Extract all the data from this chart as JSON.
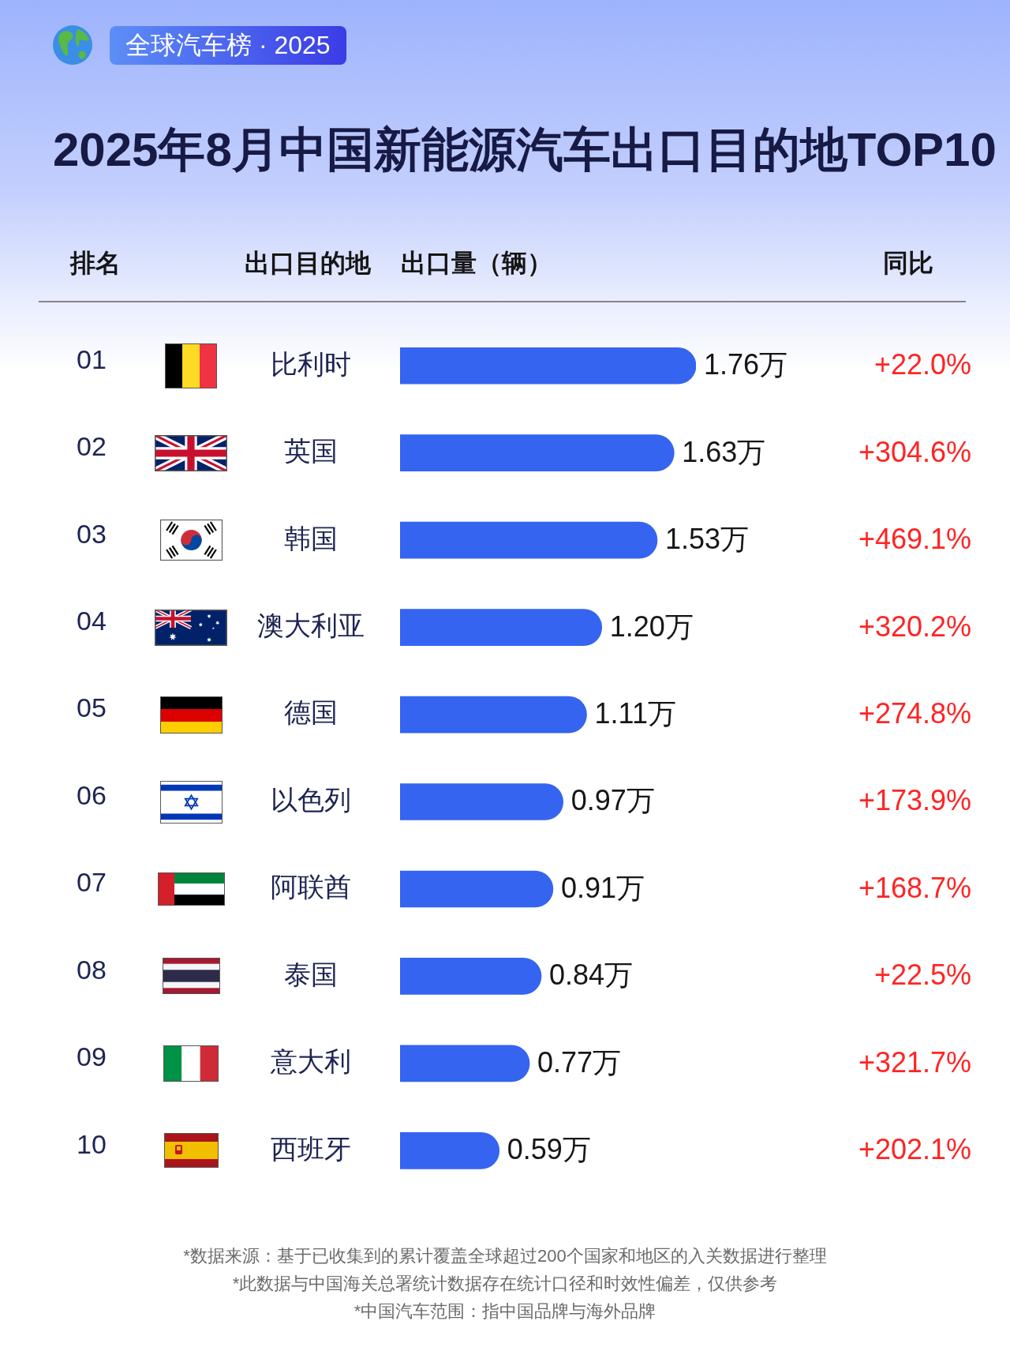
{
  "chart_data": {
    "type": "bar",
    "orientation": "horizontal",
    "title": "2025年8月中国新能源汽车出口目的地TOP10",
    "subtitle": "全球汽车榜 · 2025",
    "xlabel": "出口量（辆）",
    "ylabel": "出口目的地",
    "categories": [
      "比利时",
      "英国",
      "韩国",
      "澳大利亚",
      "德国",
      "以色列",
      "阿联酋",
      "泰国",
      "意大利",
      "西班牙"
    ],
    "values": [
      1.76,
      1.63,
      1.53,
      1.2,
      1.11,
      0.97,
      0.91,
      0.84,
      0.77,
      0.59
    ],
    "value_labels": [
      "1.76万",
      "1.63万",
      "1.53万",
      "1.20万",
      "1.11万",
      "0.97万",
      "0.91万",
      "0.84万",
      "0.77万",
      "0.59万"
    ],
    "color": "#3464f0",
    "tick_labels": "y",
    "annotations": [
      "排名",
      "01",
      "02",
      "03",
      "04",
      "05",
      "06",
      "07",
      "08",
      "09",
      "10",
      "同比",
      "+22.0%",
      "+304.6%",
      "+469.1%",
      "+320.2%",
      "+274.8%",
      "+173.9%",
      "+168.7%",
      "+22.5%",
      "+321.7%",
      "+202.1%",
      "*数据来源：基于已收集到的累计覆盖全球超过200个国家和地区的入关数据进行整理",
      "*此数据与中国海关总署统计数据存在统计口径和时效性偏差，仅供参考",
      "*中国汽车范围：指中国品牌与海外品牌"
    ]
  }
}
